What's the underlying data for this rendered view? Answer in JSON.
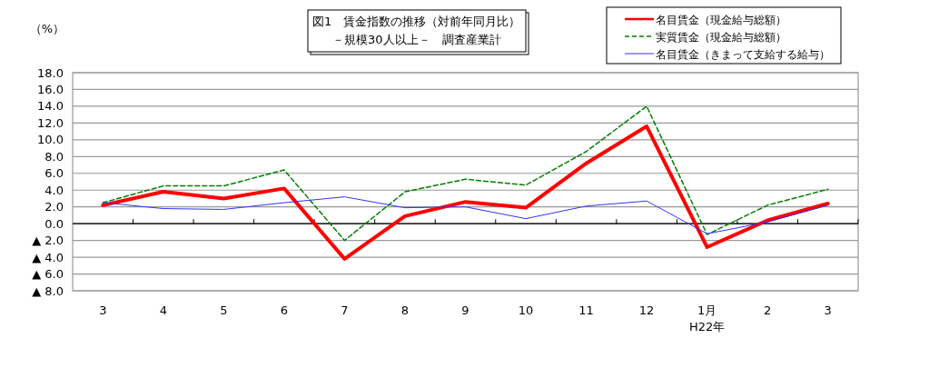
{
  "chart_data": {
    "type": "line",
    "title": "図1　賃金指数の推移（対前年同月比）",
    "subtitle": "－規模30人以上－　調査産業計",
    "ylabel": "（%）",
    "categories": [
      "3",
      "4",
      "5",
      "6",
      "7",
      "8",
      "9",
      "10",
      "11",
      "12",
      "1月\nH22年",
      "2",
      "3"
    ],
    "series": [
      {
        "name": "名目賃金（現金給与総額）",
        "color": "#ff0000",
        "line_style": "solid",
        "values": [
          2.2,
          3.8,
          3.0,
          4.2,
          -4.2,
          0.9,
          2.6,
          1.9,
          7.2,
          11.6,
          -2.8,
          0.4,
          2.4
        ]
      },
      {
        "name": "実質賃金（現金給与総額）",
        "color": "#007f00",
        "line_style": "dashed",
        "values": [
          2.5,
          4.5,
          4.5,
          6.4,
          -2.0,
          3.8,
          5.3,
          4.6,
          8.6,
          14.0,
          -1.3,
          2.2,
          4.1
        ]
      },
      {
        "name": "名目賃金（きまって支給する給与）",
        "color": "#3333ff",
        "line_style": "solid",
        "values": [
          2.5,
          1.8,
          1.7,
          2.5,
          3.2,
          1.9,
          2.0,
          0.6,
          2.1,
          2.7,
          -1.2,
          0.2,
          2.2
        ]
      }
    ],
    "ylim": [
      -8,
      18
    ],
    "yticks": [
      {
        "value": 18,
        "label": "18.0"
      },
      {
        "value": 16,
        "label": "16.0"
      },
      {
        "value": 14,
        "label": "14.0"
      },
      {
        "value": 12,
        "label": "12.0"
      },
      {
        "value": 10,
        "label": "10.0"
      },
      {
        "value": 8,
        "label": "8.0"
      },
      {
        "value": 6,
        "label": "6.0"
      },
      {
        "value": 4,
        "label": "4.0"
      },
      {
        "value": 2,
        "label": "2.0"
      },
      {
        "value": 0,
        "label": "0.0"
      },
      {
        "value": -2,
        "label": "▲ 2.0"
      },
      {
        "value": -4,
        "label": "▲ 4.0"
      },
      {
        "value": -6,
        "label": "▲ 6.0"
      },
      {
        "value": -8,
        "label": "▲ 8.0"
      }
    ],
    "grid": "y",
    "legend": "top right",
    "marker": "none"
  }
}
